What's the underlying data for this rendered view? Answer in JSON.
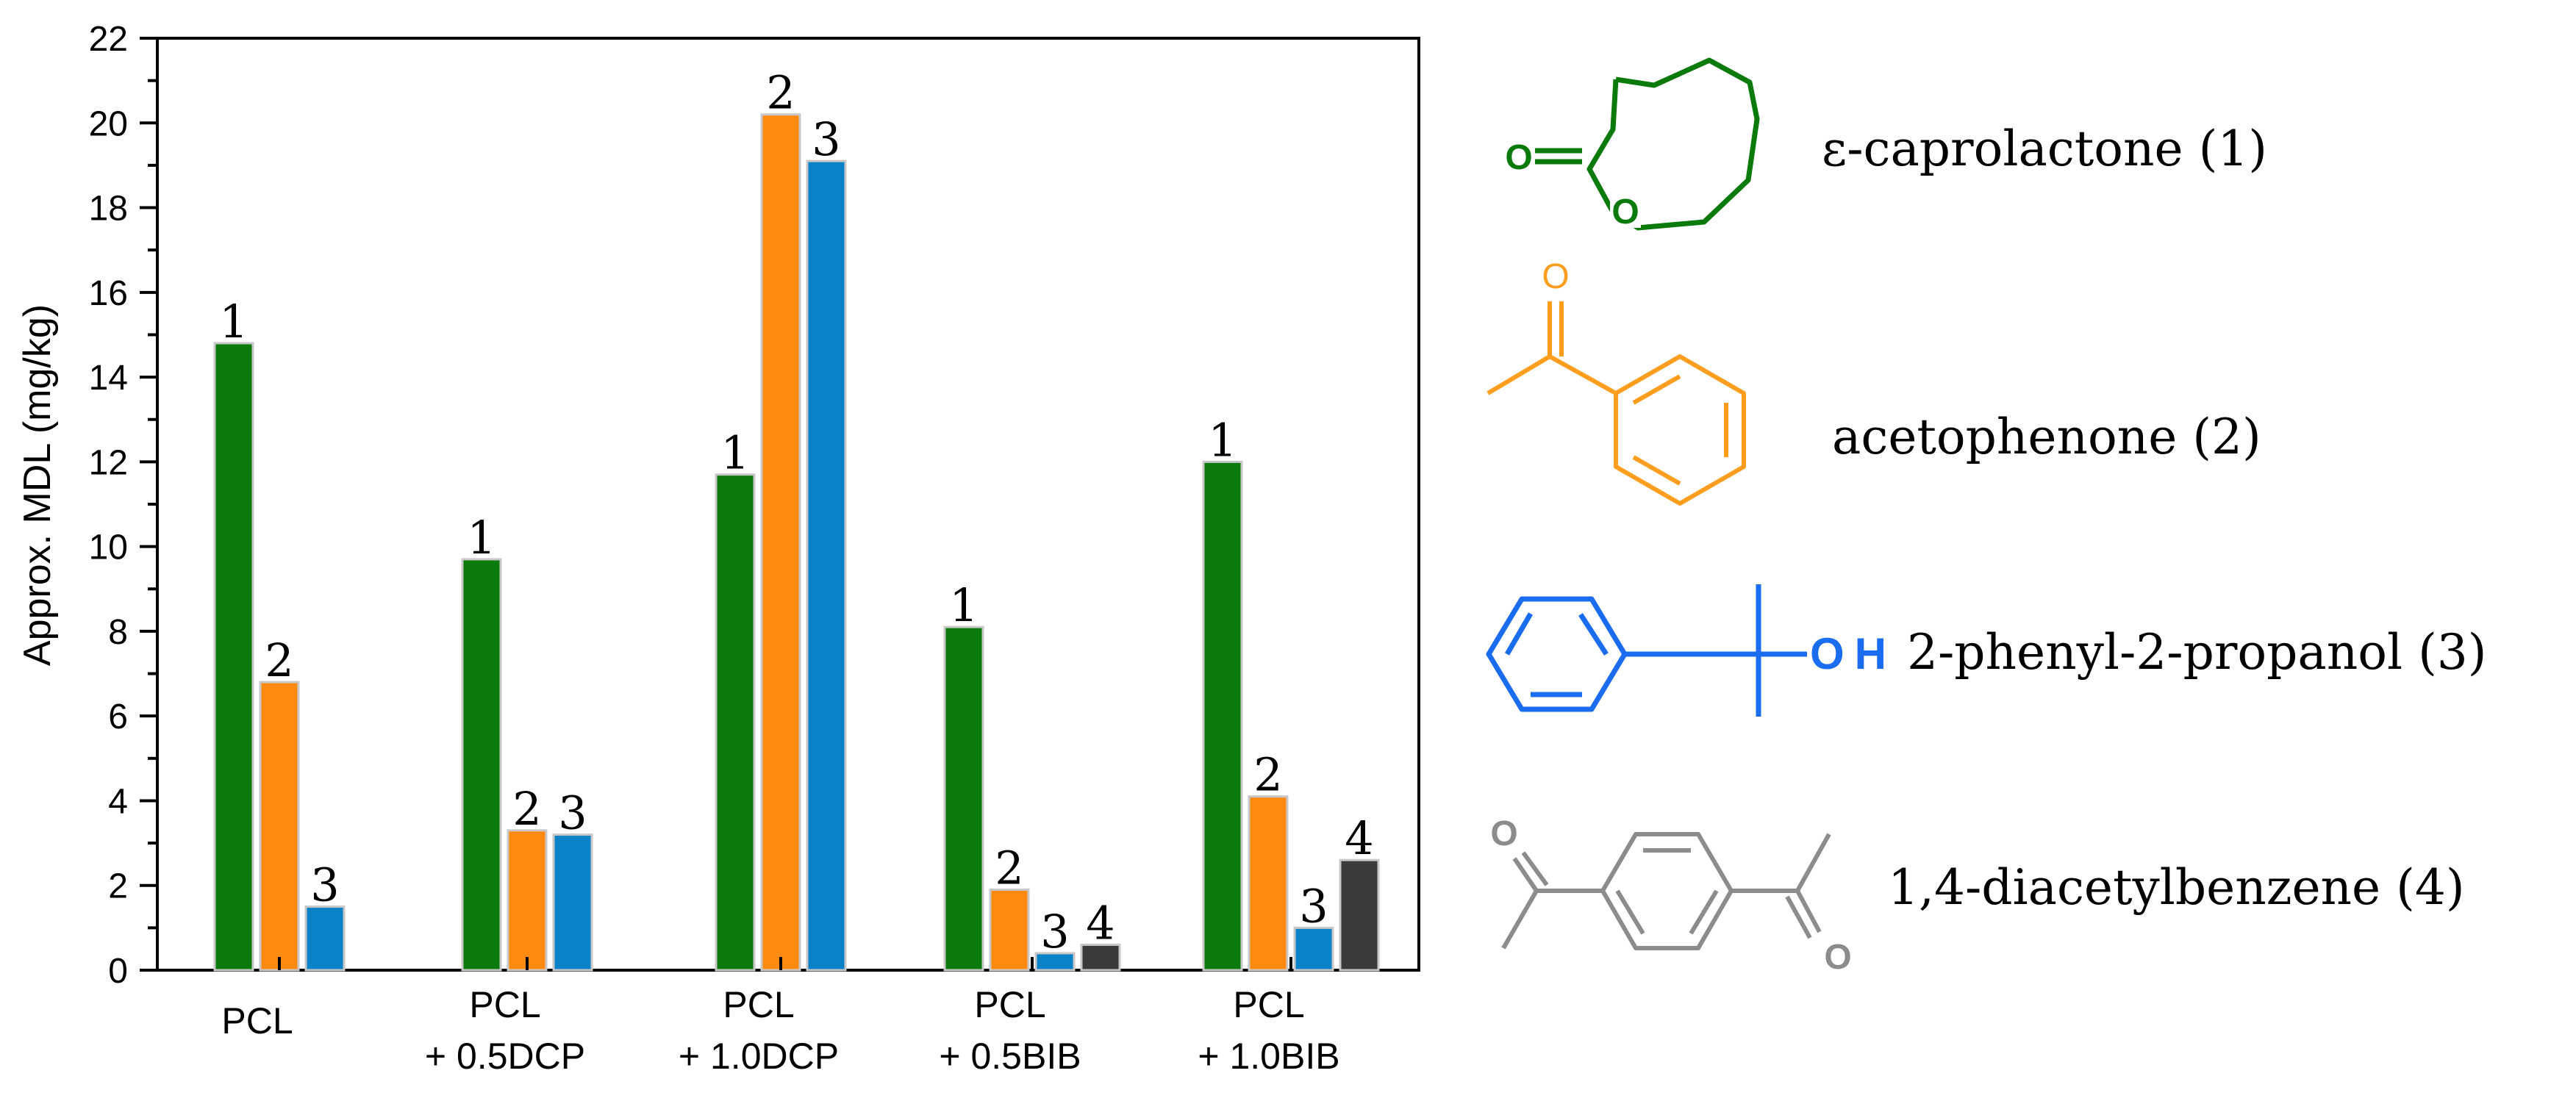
{
  "chart_data": {
    "type": "bar",
    "ylabel": "Approx. MDL  (mg/kg)",
    "xlabel": "",
    "ylim": [
      0,
      22
    ],
    "yticks": [
      0,
      2,
      4,
      6,
      8,
      10,
      12,
      14,
      16,
      18,
      20,
      22
    ],
    "categories": [
      [
        "PCL"
      ],
      [
        "PCL",
        "+ 0.5DCP"
      ],
      [
        "PCL",
        "+ 1.0DCP"
      ],
      [
        "PCL",
        "+ 0.5BIB"
      ],
      [
        "PCL",
        "+ 1.0BIB"
      ]
    ],
    "series": [
      {
        "label": "1",
        "color": "#0a7a0a",
        "values": [
          14.8,
          9.7,
          11.7,
          8.1,
          12.0
        ]
      },
      {
        "label": "2",
        "color": "#ff8a10",
        "values": [
          6.8,
          3.3,
          20.2,
          1.9,
          4.1
        ]
      },
      {
        "label": "3",
        "color": "#0a82c8",
        "values": [
          1.5,
          3.2,
          19.1,
          0.4,
          1.0
        ]
      },
      {
        "label": "4",
        "color": "#3a3a3a",
        "values": [
          null,
          null,
          null,
          0.6,
          2.6
        ]
      }
    ]
  },
  "compounds": [
    {
      "name": "ε-caprolactone (1)",
      "color": "#0a7a0a",
      "icon": "caprolactone-structure",
      "atom_labels": [
        "O",
        "O"
      ]
    },
    {
      "name": "acetophenone (2)",
      "color": "#ff9d1f",
      "icon": "acetophenone-structure",
      "atom_labels": [
        "O"
      ]
    },
    {
      "name": "2-phenyl-2-propanol (3)",
      "color": "#1a6cf0",
      "icon": "phenylpropanol-structure",
      "atom_labels": [
        "OH"
      ]
    },
    {
      "name": "1,4-diacetylbenzene (4)",
      "color": "#8c8c8c",
      "icon": "diacetylbenzene-structure",
      "atom_labels": [
        "O",
        "O"
      ]
    }
  ]
}
